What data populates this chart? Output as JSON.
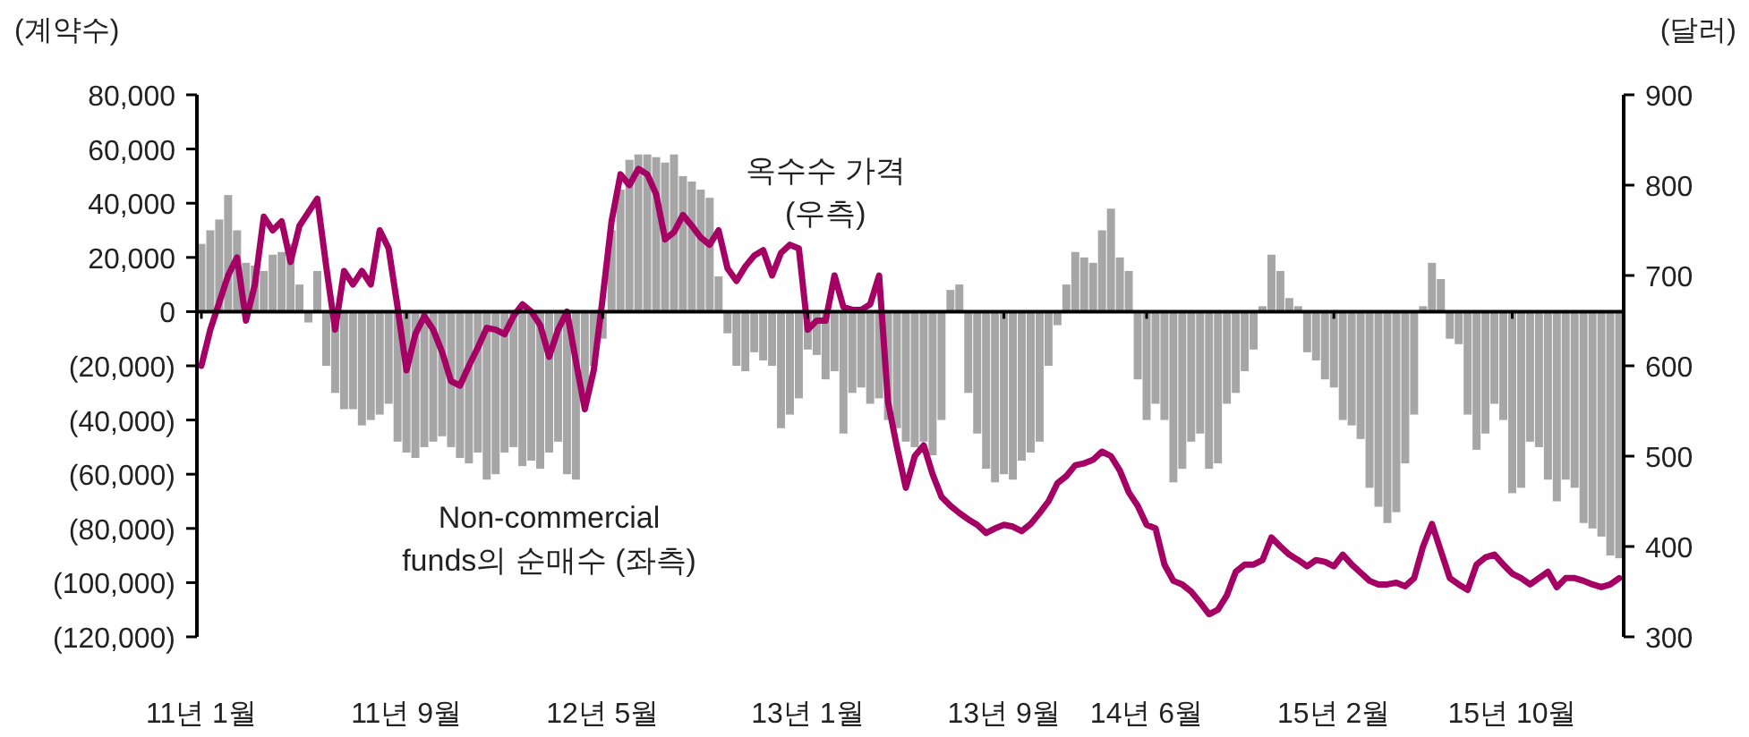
{
  "chart_data": {
    "type": "bar",
    "ylabel": "(계약수)",
    "y2label": "(달러)",
    "categories": [
      "11년 1월",
      null,
      null,
      null,
      null,
      null,
      null,
      null,
      null,
      null,
      null,
      null,
      null,
      null,
      null,
      null,
      null,
      null,
      null,
      null,
      null,
      null,
      null,
      "11년 9월",
      null,
      null,
      null,
      null,
      null,
      null,
      null,
      null,
      null,
      null,
      null,
      null,
      null,
      null,
      null,
      null,
      null,
      null,
      null,
      null,
      null,
      "12년 5월",
      null,
      null,
      null,
      null,
      null,
      null,
      null,
      null,
      null,
      null,
      null,
      null,
      null,
      null,
      null,
      null,
      null,
      null,
      null,
      null,
      null,
      null,
      "13년 1월",
      null,
      null,
      null,
      null,
      null,
      null,
      null,
      null,
      null,
      null,
      null,
      null,
      null,
      null,
      null,
      null,
      null,
      null,
      null,
      null,
      null,
      "13년 9월",
      null,
      null,
      null,
      null,
      null,
      null,
      null,
      null,
      null,
      null,
      null,
      null,
      null,
      null,
      null,
      "14년 6월",
      null,
      null,
      null,
      null,
      null,
      null,
      null,
      null,
      null,
      null,
      null,
      null,
      null,
      null,
      null,
      null,
      null,
      null,
      null,
      null,
      "15년 2월",
      null,
      null,
      null,
      null,
      null,
      null,
      null,
      null,
      null,
      null,
      null,
      null,
      null,
      null,
      null,
      null,
      null,
      null,
      null,
      "15년 10월",
      null,
      null,
      null,
      null,
      null,
      null,
      null,
      null,
      null,
      null,
      null,
      null
    ],
    "ylim": [
      -120000,
      80000
    ],
    "yticks": [
      {
        "value": -120000,
        "label": "(120,000)"
      },
      {
        "value": -100000,
        "label": "(100,000)"
      },
      {
        "value": -80000,
        "label": "(80,000)"
      },
      {
        "value": -60000,
        "label": "(60,000)"
      },
      {
        "value": -40000,
        "label": "(40,000)"
      },
      {
        "value": -20000,
        "label": "(20,000)"
      },
      0,
      {
        "value": 20000,
        "label": "20,000"
      },
      {
        "value": 40000,
        "label": "40,000"
      },
      {
        "value": 60000,
        "label": "60,000"
      },
      {
        "value": 80000,
        "label": "80,000"
      }
    ],
    "y2lim": [
      300,
      900
    ],
    "y2ticks": [
      300,
      400,
      500,
      600,
      700,
      800,
      900
    ],
    "series": [
      {
        "name": "Non-commercial funds의 순매수 (좌측)",
        "color": "#a6a6a6",
        "values": [
          25000,
          30000,
          34000,
          43000,
          30000,
          18000,
          17000,
          15000,
          21000,
          22000,
          25000,
          10000,
          -4000,
          15000,
          -20000,
          -30000,
          -36000,
          -36000,
          -42000,
          -40000,
          -38000,
          -34000,
          -48000,
          -52000,
          -54000,
          -50000,
          -48000,
          -46000,
          -50000,
          -54000,
          -56000,
          -52000,
          -62000,
          -60000,
          -52000,
          -50000,
          -57000,
          -55000,
          -58000,
          -52000,
          -48000,
          -60000,
          -62000,
          -30000,
          -20000,
          -10000,
          30000,
          45000,
          56000,
          58000,
          58000,
          57000,
          55000,
          58000,
          50000,
          48000,
          45000,
          42000,
          13000,
          -8000,
          -20000,
          -22000,
          -15000,
          -18000,
          -20000,
          -43000,
          -38000,
          -32000,
          -14000,
          -16000,
          -25000,
          -22000,
          -45000,
          -30000,
          -28000,
          -34000,
          -32000,
          -40000,
          -43000,
          -48000,
          -50000,
          -48000,
          -53000,
          -40000,
          8000,
          10000,
          -30000,
          -45000,
          -58000,
          -63000,
          -60000,
          -62000,
          -55000,
          -52000,
          -48000,
          -20000,
          -5000,
          10000,
          22000,
          20000,
          18000,
          30000,
          38000,
          20000,
          15000,
          -25000,
          -40000,
          -34000,
          -40000,
          -63000,
          -58000,
          -48000,
          -45000,
          -58000,
          -56000,
          -34000,
          -30000,
          -22000,
          -14000,
          2000,
          21000,
          15000,
          5000,
          2000,
          -15000,
          -18000,
          -25000,
          -28000,
          -40000,
          -42000,
          -47000,
          -65000,
          -72000,
          -78000,
          -74000,
          -56000,
          -38000,
          2000,
          18000,
          12000,
          -10000,
          -12000,
          -38000,
          -51000,
          -45000,
          -34000,
          -40000,
          -67000,
          -65000,
          -48000,
          -50000,
          -62000,
          -70000,
          -62000,
          -65000,
          -78000,
          -80000,
          -83000,
          -90000,
          -91000
        ]
      },
      {
        "name": "옥수수 가격 (우측)",
        "type": "line",
        "axis": "y2",
        "color": "#a50064",
        "values": [
          600,
          640,
          670,
          700,
          720,
          650,
          690,
          765,
          750,
          760,
          715,
          755,
          770,
          785,
          710,
          640,
          705,
          690,
          705,
          690,
          750,
          730,
          665,
          595,
          635,
          655,
          640,
          615,
          583,
          578,
          600,
          620,
          642,
          640,
          635,
          655,
          668,
          660,
          645,
          610,
          640,
          660,
          605,
          552,
          595,
          675,
          760,
          812,
          800,
          818,
          812,
          790,
          740,
          748,
          767,
          755,
          742,
          734,
          750,
          708,
          694,
          710,
          722,
          728,
          700,
          725,
          734,
          730,
          640,
          650,
          650,
          700,
          665,
          662,
          662,
          668,
          700,
          560,
          510,
          465,
          500,
          512,
          480,
          455,
          445,
          437,
          430,
          424,
          415,
          420,
          424,
          422,
          417,
          425,
          437,
          450,
          470,
          478,
          490,
          492,
          496,
          505,
          500,
          484,
          460,
          445,
          424,
          420,
          380,
          362,
          358,
          350,
          338,
          325,
          330,
          346,
          372,
          380,
          380,
          385,
          410,
          400,
          391,
          385,
          378,
          385,
          383,
          378,
          391,
          380,
          371,
          362,
          358,
          358,
          360,
          356,
          365,
          400,
          425,
          395,
          365,
          358,
          352,
          380,
          388,
          391,
          380,
          370,
          365,
          358,
          365,
          372,
          355,
          365,
          365,
          362,
          358,
          355,
          358,
          365
        ]
      }
    ]
  }
}
